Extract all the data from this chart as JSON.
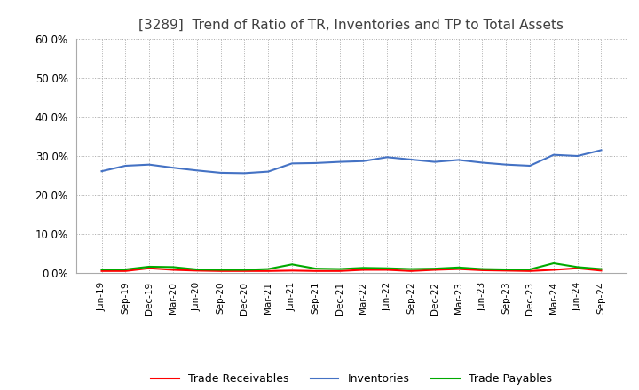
{
  "title": "[3289]  Trend of Ratio of TR, Inventories and TP to Total Assets",
  "x_labels": [
    "Jun-19",
    "Sep-19",
    "Dec-19",
    "Mar-20",
    "Jun-20",
    "Sep-20",
    "Dec-20",
    "Mar-21",
    "Jun-21",
    "Sep-21",
    "Dec-21",
    "Mar-22",
    "Jun-22",
    "Sep-22",
    "Dec-22",
    "Mar-23",
    "Jun-23",
    "Sep-23",
    "Dec-23",
    "Mar-24",
    "Jun-24",
    "Sep-24"
  ],
  "trade_receivables": [
    0.005,
    0.005,
    0.012,
    0.008,
    0.006,
    0.005,
    0.005,
    0.005,
    0.006,
    0.005,
    0.005,
    0.008,
    0.008,
    0.005,
    0.008,
    0.01,
    0.007,
    0.006,
    0.005,
    0.008,
    0.012,
    0.006
  ],
  "inventories": [
    0.261,
    0.275,
    0.278,
    0.27,
    0.263,
    0.257,
    0.256,
    0.26,
    0.281,
    0.282,
    0.285,
    0.287,
    0.297,
    0.291,
    0.285,
    0.29,
    0.283,
    0.278,
    0.275,
    0.303,
    0.3,
    0.315
  ],
  "trade_payables": [
    0.009,
    0.009,
    0.016,
    0.015,
    0.009,
    0.008,
    0.008,
    0.01,
    0.022,
    0.011,
    0.01,
    0.013,
    0.012,
    0.01,
    0.011,
    0.014,
    0.01,
    0.009,
    0.009,
    0.025,
    0.015,
    0.01
  ],
  "tr_color": "#FF0000",
  "inv_color": "#4472C4",
  "tp_color": "#00AA00",
  "ylim": [
    0.0,
    0.6
  ],
  "yticks": [
    0.0,
    0.1,
    0.2,
    0.3,
    0.4,
    0.5,
    0.6
  ],
  "background_color": "#FFFFFF",
  "plot_bg_color": "#FFFFFF",
  "grid_color": "#AAAAAA",
  "title_fontsize": 11,
  "title_color": "#404040",
  "legend_labels": [
    "Trade Receivables",
    "Inventories",
    "Trade Payables"
  ],
  "line_width": 1.5
}
